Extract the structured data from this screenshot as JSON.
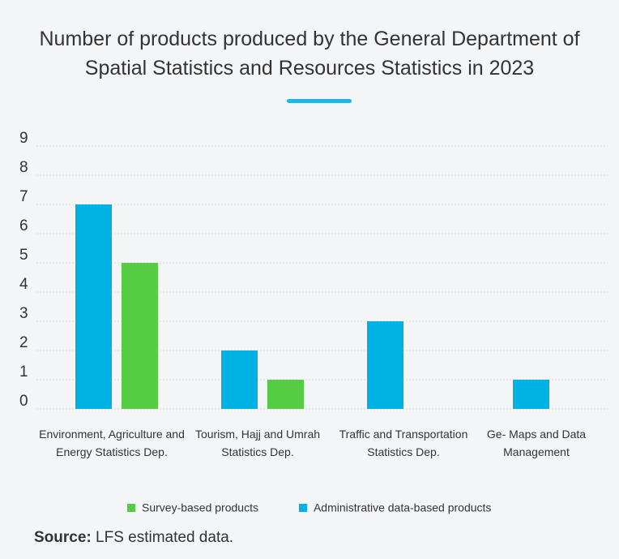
{
  "chart_data": {
    "type": "bar",
    "title": "Number of products produced by the General Department of Spatial Statistics and Resources Statistics in 2023",
    "categories": [
      "Environment, Agriculture and Energy Statistics Dep.",
      "Tourism, Hajj and Umrah Statistics Dep.",
      "Traffic and Transportation Statistics Dep.",
      "Ge- Maps and Data Management"
    ],
    "series": [
      {
        "name": "Survey-based products",
        "color": "#55cc44",
        "values": [
          5,
          1,
          0,
          0
        ]
      },
      {
        "name": "Administrative data-based products",
        "color": "#00b2e3",
        "values": [
          7,
          2,
          3,
          1
        ]
      }
    ],
    "ylim": [
      0,
      9
    ],
    "yticks": [
      0,
      1,
      2,
      3,
      4,
      5,
      6,
      7,
      8,
      9
    ],
    "grid": true,
    "legend": "bottom"
  },
  "source_label": "Source:",
  "source": "LFS estimated data."
}
